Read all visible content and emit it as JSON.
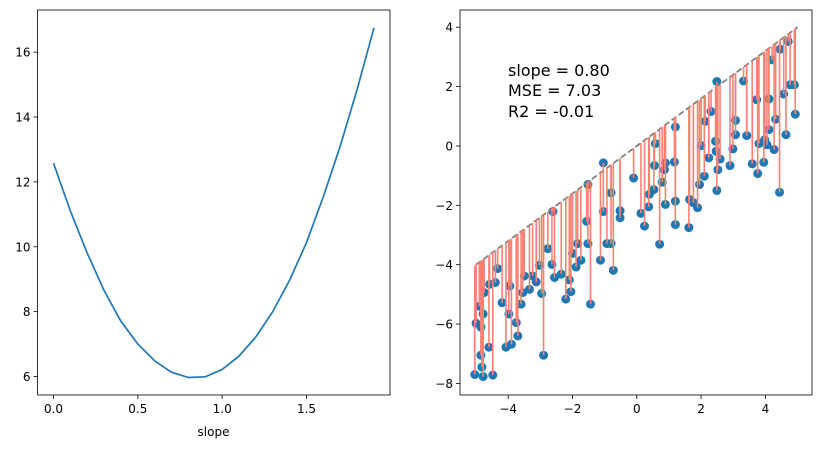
{
  "chart_data": [
    {
      "type": "line",
      "xlabel": "slope",
      "ylabel": "",
      "xlim": [
        -0.095,
        1.995
      ],
      "ylim": [
        5.43,
        17.3
      ],
      "xticks": [
        "0.0",
        "0.5",
        "1.0",
        "1.5"
      ],
      "xtick_values": [
        0,
        0.5,
        1.0,
        1.5
      ],
      "yticks": [
        "6",
        "8",
        "10",
        "12",
        "14",
        "16"
      ],
      "ytick_values": [
        6,
        8,
        10,
        12,
        14,
        16
      ],
      "grid": false,
      "color": "#1f77b4",
      "x": [
        0.0,
        0.1,
        0.2,
        0.3,
        0.4,
        0.5,
        0.6,
        0.7,
        0.8,
        0.9,
        1.0,
        1.1,
        1.2,
        1.3,
        1.4,
        1.5,
        1.6,
        1.7,
        1.8,
        1.9
      ],
      "y": [
        12.58,
        11.1,
        9.8,
        8.65,
        7.7,
        7.0,
        6.48,
        6.13,
        5.97,
        5.99,
        6.22,
        6.63,
        7.22,
        8.0,
        8.97,
        10.13,
        11.55,
        13.1,
        14.85,
        16.75
      ]
    },
    {
      "type": "scatter",
      "xlabel": "",
      "ylabel": "",
      "xlim": [
        -5.5,
        5.45
      ],
      "ylim": [
        -8.39,
        4.58
      ],
      "xticks": [
        "−4",
        "−2",
        "0",
        "2",
        "4"
      ],
      "xtick_values": [
        -4,
        -2,
        0,
        2,
        4
      ],
      "yticks": [
        "−8",
        "−6",
        "−4",
        "−2",
        "0",
        "2",
        "4"
      ],
      "ytick_values": [
        -8,
        -6,
        -4,
        -2,
        0,
        2,
        4
      ],
      "grid": false,
      "point_color": "#1f77b4",
      "residual_color": "#fa8072",
      "fit_line_color": "#808080",
      "fit_line": {
        "slope": 0.8,
        "x": [
          -5,
          5
        ],
        "style": "dashed"
      },
      "annotation": [
        "slope = 0.80",
        "MSE = 7.03",
        "R2 = -0.01"
      ],
      "points": [
        [
          -5.04,
          -7.7
        ],
        [
          -5.0,
          -5.97
        ],
        [
          -4.85,
          -7.05
        ],
        [
          -4.82,
          -7.45
        ],
        [
          -4.78,
          -7.77
        ],
        [
          -4.85,
          -6.1
        ],
        [
          -4.78,
          -5.66
        ],
        [
          -4.9,
          -5.4
        ],
        [
          -4.75,
          -4.94
        ],
        [
          -4.6,
          -6.78
        ],
        [
          -4.58,
          -4.66
        ],
        [
          -4.48,
          -7.72
        ],
        [
          -4.4,
          -4.6
        ],
        [
          -4.33,
          -4.13
        ],
        [
          -4.19,
          -5.28
        ],
        [
          -4.07,
          -6.78
        ],
        [
          -3.98,
          -5.66
        ],
        [
          -3.9,
          -6.68
        ],
        [
          -3.95,
          -4.72
        ],
        [
          -3.75,
          -5.95
        ],
        [
          -3.7,
          -6.4
        ],
        [
          -3.6,
          -5.33
        ],
        [
          -3.55,
          -4.94
        ],
        [
          -3.5,
          -4.38
        ],
        [
          -3.34,
          -4.83
        ],
        [
          -3.24,
          -4.38
        ],
        [
          -3.13,
          -4.58
        ],
        [
          -3.03,
          -4.02
        ],
        [
          -2.96,
          -4.97
        ],
        [
          -2.9,
          -7.05
        ],
        [
          -2.77,
          -3.46
        ],
        [
          -2.64,
          -3.99
        ],
        [
          -2.56,
          -4.43
        ],
        [
          -2.61,
          -2.21
        ],
        [
          -2.35,
          -4.32
        ],
        [
          -2.21,
          -5.16
        ],
        [
          -2.1,
          -4.51
        ],
        [
          -2.05,
          -4.91
        ],
        [
          -2.0,
          -3.62
        ],
        [
          -1.89,
          -4.08
        ],
        [
          -1.84,
          -3.29
        ],
        [
          -1.74,
          -3.85
        ],
        [
          -1.56,
          -2.54
        ],
        [
          -1.52,
          -3.29
        ],
        [
          -1.52,
          -1.3
        ],
        [
          -1.44,
          -5.33
        ],
        [
          -1.13,
          -3.85
        ],
        [
          -1.04,
          -0.57
        ],
        [
          -1.04,
          -2.21
        ],
        [
          -0.93,
          -3.29
        ],
        [
          -0.8,
          -3.29
        ],
        [
          -0.8,
          -1.58
        ],
        [
          -0.73,
          -4.19
        ],
        [
          -0.52,
          -2.42
        ],
        [
          -0.52,
          -2.18
        ],
        [
          -0.1,
          -1.08
        ],
        [
          0.13,
          -2.27
        ],
        [
          0.24,
          -2.7
        ],
        [
          0.37,
          -2.05
        ],
        [
          0.39,
          -1.63
        ],
        [
          0.53,
          -1.47
        ],
        [
          0.55,
          -0.66
        ],
        [
          0.58,
          0.08
        ],
        [
          0.71,
          -3.31
        ],
        [
          0.79,
          -1.22
        ],
        [
          0.86,
          -0.8
        ],
        [
          0.89,
          -1.97
        ],
        [
          0.89,
          -0.57
        ],
        [
          1.17,
          -0.54
        ],
        [
          1.2,
          0.64
        ],
        [
          1.2,
          -1.86
        ],
        [
          1.2,
          -2.65
        ],
        [
          1.64,
          -1.8
        ],
        [
          1.62,
          -2.75
        ],
        [
          1.76,
          -1.91
        ],
        [
          1.89,
          -2.08
        ],
        [
          1.95,
          -1.3
        ],
        [
          2.0,
          0.01
        ],
        [
          2.1,
          -1.02
        ],
        [
          2.13,
          0.83
        ],
        [
          2.24,
          -0.4
        ],
        [
          2.31,
          1.16
        ],
        [
          2.45,
          0.16
        ],
        [
          2.47,
          -0.18
        ],
        [
          2.49,
          2.17
        ],
        [
          2.49,
          -1.5
        ],
        [
          2.52,
          -0.8
        ],
        [
          2.59,
          -0.44
        ],
        [
          2.9,
          -0.66
        ],
        [
          2.99,
          -0.1
        ],
        [
          3.07,
          0.86
        ],
        [
          3.07,
          0.38
        ],
        [
          3.32,
          2.19
        ],
        [
          3.42,
          0.35
        ],
        [
          3.59,
          -0.6
        ],
        [
          3.76,
          -0.93
        ],
        [
          3.73,
          1.56
        ],
        [
          3.8,
          0.08
        ],
        [
          3.95,
          -0.55
        ],
        [
          3.98,
          0.21
        ],
        [
          4.05,
          0.04
        ],
        [
          4.11,
          1.58
        ],
        [
          4.11,
          0.55
        ],
        [
          4.21,
          2.9
        ],
        [
          4.27,
          -0.12
        ],
        [
          4.32,
          0.9
        ],
        [
          4.44,
          -1.56
        ],
        [
          4.46,
          3.26
        ],
        [
          4.57,
          1.75
        ],
        [
          4.64,
          0.38
        ],
        [
          4.71,
          3.52
        ],
        [
          4.77,
          2.06
        ],
        [
          4.9,
          2.06
        ],
        [
          4.93,
          1.07
        ]
      ]
    }
  ]
}
